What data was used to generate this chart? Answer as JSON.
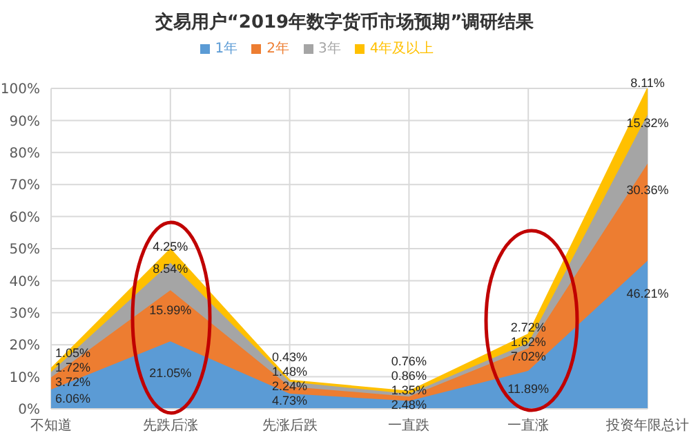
{
  "chart_data": {
    "type": "area",
    "title": "交易用户“2019年数字货币市场预期”调研结果",
    "stacked": true,
    "categories": [
      "不知道",
      "先跌后涨",
      "先涨后跌",
      "一直跌",
      "一直涨",
      "投资年限总计"
    ],
    "series": [
      {
        "name": "1年",
        "color": "#5b9bd5",
        "values": [
          6.06,
          21.05,
          4.73,
          2.48,
          11.89,
          46.21
        ],
        "value_labels": [
          "6.06%",
          "21.05%",
          "4.73%",
          "2.48%",
          "11.89%",
          "46.21%"
        ]
      },
      {
        "name": "2年",
        "color": "#ed7d31",
        "values": [
          3.72,
          15.99,
          2.24,
          1.35,
          7.02,
          30.36
        ],
        "value_labels": [
          "3.72%",
          "15.99%",
          "2.24%",
          "1.35%",
          "7.02%",
          "30.36%"
        ]
      },
      {
        "name": "3年",
        "color": "#a5a5a5",
        "values": [
          1.72,
          8.54,
          1.48,
          0.86,
          1.62,
          15.32
        ],
        "value_labels": [
          "1.72%",
          "8.54%",
          "1.48%",
          "0.86%",
          "1.62%",
          "15.32%"
        ]
      },
      {
        "name": "4年及以上",
        "color": "#ffc000",
        "values": [
          1.05,
          4.25,
          0.43,
          0.76,
          2.72,
          8.11
        ],
        "value_labels": [
          "1.05%",
          "4.25%",
          "0.43%",
          "0.76%",
          "2.72%",
          "8.11%"
        ]
      }
    ],
    "ylim": [
      0,
      100
    ],
    "yticks": [
      {
        "value": 0,
        "label": "0%"
      },
      {
        "value": 10,
        "label": "10%"
      },
      {
        "value": 20,
        "label": "20%"
      },
      {
        "value": 30,
        "label": "30%"
      },
      {
        "value": 40,
        "label": "40%"
      },
      {
        "value": 50,
        "label": "50%"
      },
      {
        "value": 60,
        "label": "60%"
      },
      {
        "value": 70,
        "label": "70%"
      },
      {
        "value": 80,
        "label": "80%"
      },
      {
        "value": 90,
        "label": "90%"
      },
      {
        "value": 100,
        "label": "100%"
      }
    ],
    "grid": true,
    "legend": "top"
  }
}
